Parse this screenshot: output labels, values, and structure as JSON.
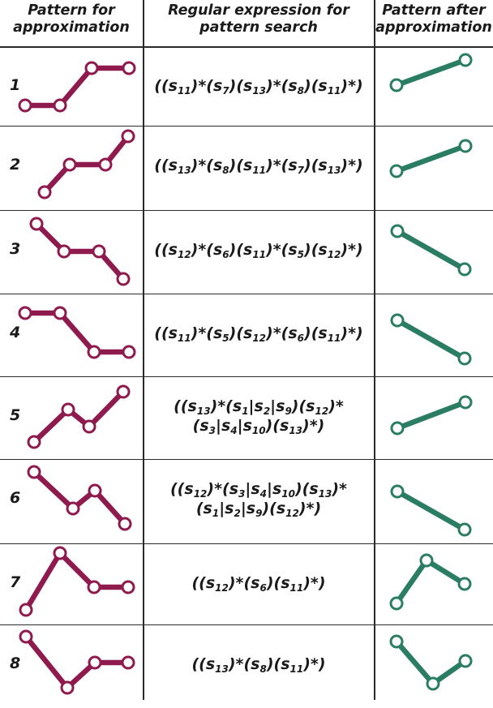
{
  "header": {
    "col1": "Pattern for\napproximation",
    "col2": "Regular expression for\npattern search",
    "col3": "Pattern after\napproximation"
  },
  "colors": {
    "pattern": "#8e1a4e",
    "approx": "#2a7d63",
    "grid": "#2a2a2a"
  },
  "rows": [
    {
      "label": "1",
      "expr_lines": [
        [
          [
            "t",
            "(("
          ],
          [
            "s",
            "11"
          ],
          [
            "t",
            ")*("
          ],
          [
            "s",
            "7"
          ],
          [
            "t",
            ")("
          ],
          [
            "s",
            "13"
          ],
          [
            "t",
            ")*("
          ],
          [
            "s",
            "8"
          ],
          [
            "t",
            ")("
          ],
          [
            "s",
            "11"
          ],
          [
            "t",
            ")*)"
          ]
        ]
      ]
    },
    {
      "label": "2",
      "expr_lines": [
        [
          [
            "t",
            "(("
          ],
          [
            "s",
            "13"
          ],
          [
            "t",
            ")*("
          ],
          [
            "s",
            "8"
          ],
          [
            "t",
            ")("
          ],
          [
            "s",
            "11"
          ],
          [
            "t",
            ")*("
          ],
          [
            "s",
            "7"
          ],
          [
            "t",
            ")("
          ],
          [
            "s",
            "13"
          ],
          [
            "t",
            ")*)"
          ]
        ]
      ]
    },
    {
      "label": "3",
      "expr_lines": [
        [
          [
            "t",
            "(("
          ],
          [
            "s",
            "12"
          ],
          [
            "t",
            ")*("
          ],
          [
            "s",
            "6"
          ],
          [
            "t",
            ")("
          ],
          [
            "s",
            "11"
          ],
          [
            "t",
            ")*("
          ],
          [
            "s",
            "5"
          ],
          [
            "t",
            ")("
          ],
          [
            "s",
            "12"
          ],
          [
            "t",
            ")*)"
          ]
        ]
      ]
    },
    {
      "label": "4",
      "expr_lines": [
        [
          [
            "t",
            "(("
          ],
          [
            "s",
            "11"
          ],
          [
            "t",
            ")*("
          ],
          [
            "s",
            "5"
          ],
          [
            "t",
            ")("
          ],
          [
            "s",
            "12"
          ],
          [
            "t",
            ")*("
          ],
          [
            "s",
            "6"
          ],
          [
            "t",
            ")("
          ],
          [
            "s",
            "11"
          ],
          [
            "t",
            ")*)"
          ]
        ]
      ]
    },
    {
      "label": "5",
      "expr_lines": [
        [
          [
            "t",
            "(("
          ],
          [
            "s",
            "13"
          ],
          [
            "t",
            ")*("
          ],
          [
            "s",
            "1"
          ],
          [
            "t",
            "|"
          ],
          [
            "s",
            "2"
          ],
          [
            "t",
            "|"
          ],
          [
            "s",
            "9"
          ],
          [
            "t",
            ")("
          ],
          [
            "s",
            "12"
          ],
          [
            "t",
            ")*"
          ]
        ],
        [
          [
            "t",
            "("
          ],
          [
            "s",
            "3"
          ],
          [
            "t",
            "|"
          ],
          [
            "s",
            "4"
          ],
          [
            "t",
            "|"
          ],
          [
            "s",
            "10"
          ],
          [
            "t",
            ")("
          ],
          [
            "s",
            "13"
          ],
          [
            "t",
            ")*)"
          ]
        ]
      ]
    },
    {
      "label": "6",
      "expr_lines": [
        [
          [
            "t",
            "(("
          ],
          [
            "s",
            "12"
          ],
          [
            "t",
            ")*("
          ],
          [
            "s",
            "3"
          ],
          [
            "t",
            "|"
          ],
          [
            "s",
            "4"
          ],
          [
            "t",
            "|"
          ],
          [
            "s",
            "10"
          ],
          [
            "t",
            ")("
          ],
          [
            "s",
            "13"
          ],
          [
            "t",
            ")*"
          ]
        ],
        [
          [
            "t",
            "("
          ],
          [
            "s",
            "1"
          ],
          [
            "t",
            "|"
          ],
          [
            "s",
            "2"
          ],
          [
            "t",
            "|"
          ],
          [
            "s",
            "9"
          ],
          [
            "t",
            ")("
          ],
          [
            "s",
            "12"
          ],
          [
            "t",
            ")*)"
          ]
        ]
      ]
    },
    {
      "label": "7",
      "expr_lines": [
        [
          [
            "t",
            "(("
          ],
          [
            "s",
            "12"
          ],
          [
            "t",
            ")*("
          ],
          [
            "s",
            "6"
          ],
          [
            "t",
            ")("
          ],
          [
            "s",
            "11"
          ],
          [
            "t",
            ")*)"
          ]
        ]
      ]
    },
    {
      "label": "8",
      "expr_lines": [
        [
          [
            "t",
            "(("
          ],
          [
            "s",
            "13"
          ],
          [
            "t",
            ")*("
          ],
          [
            "s",
            "8"
          ],
          [
            "t",
            ")("
          ],
          [
            "s",
            "11"
          ],
          [
            "t",
            ")*)"
          ]
        ]
      ]
    }
  ]
}
